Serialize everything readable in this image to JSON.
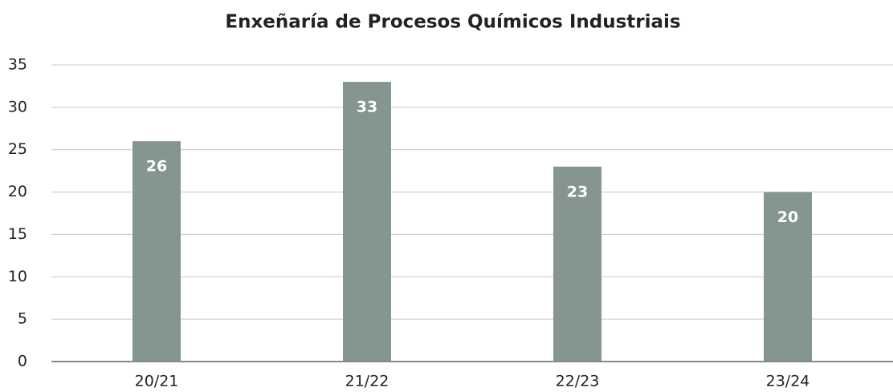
{
  "chart_data": {
    "type": "bar",
    "title": "Enxeñaría de Procesos Químicos Industriais",
    "categories": [
      "20/21",
      "21/22",
      "22/23",
      "23/24"
    ],
    "values": [
      26,
      33,
      23,
      20
    ],
    "color": "#85968f",
    "ylim": [
      0,
      35
    ],
    "yticks": [
      0,
      5,
      10,
      15,
      20,
      25,
      30,
      35
    ],
    "grid": true
  }
}
